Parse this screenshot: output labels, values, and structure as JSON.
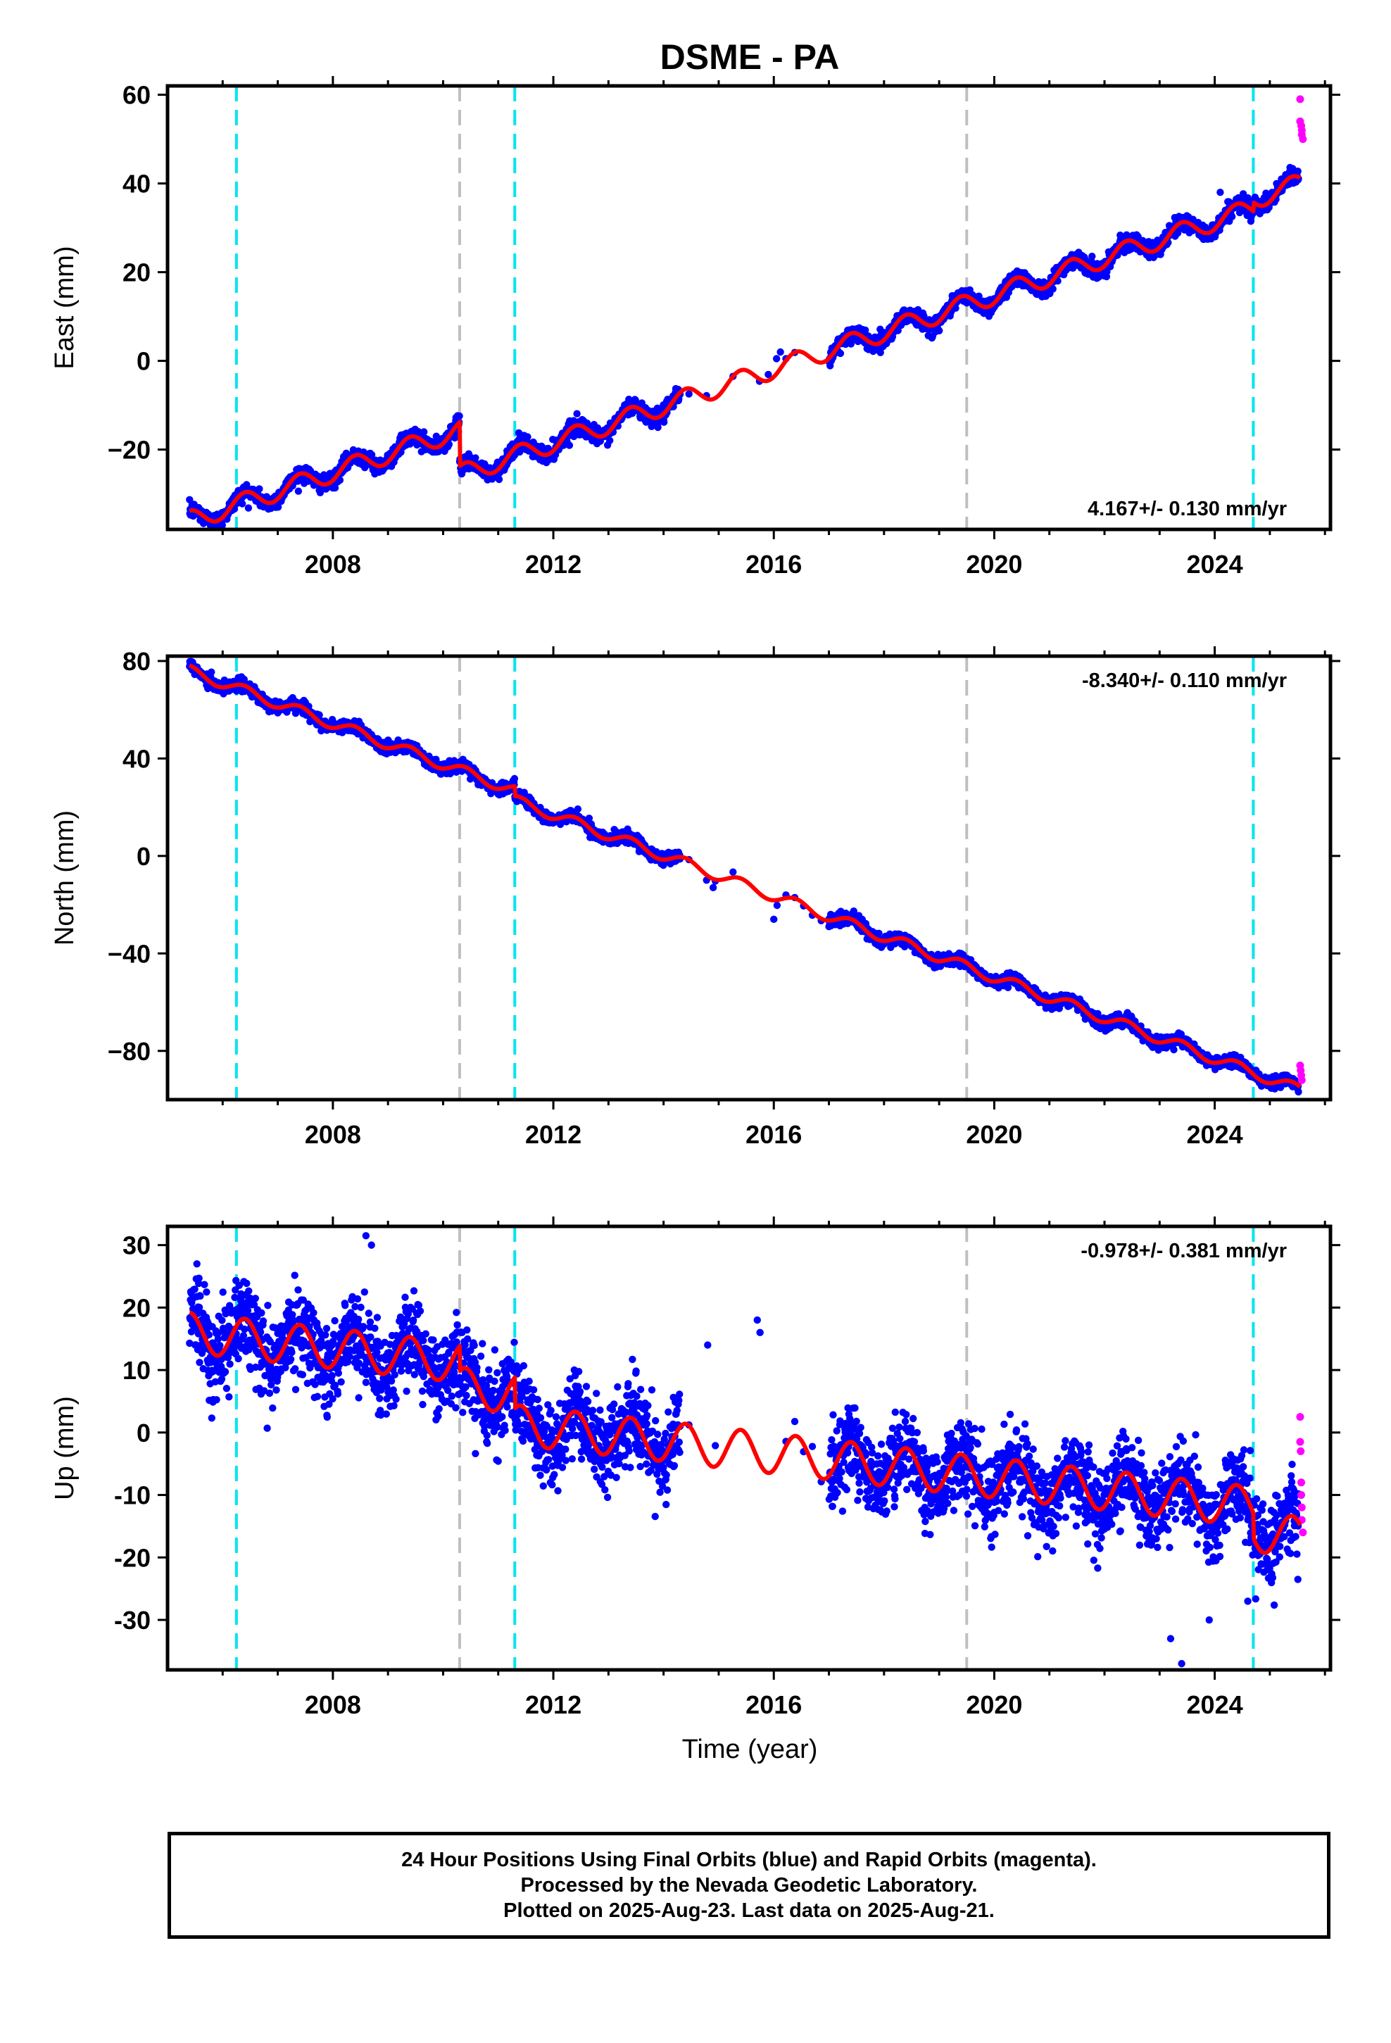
{
  "chart_data": {
    "title": "DSME - PA",
    "xlabel": "Time (year)",
    "x_tick_labels": [
      "2008",
      "2012",
      "2016",
      "2020",
      "2024"
    ],
    "xlim": [
      2005.0,
      2026.1
    ],
    "gap": [
      2014.3,
      2017.0
    ],
    "series_colors": {
      "final_orbits": "#0000ff",
      "rapid_orbits": "#ff00ff",
      "model": "#ff0000"
    },
    "vertical_lines": [
      {
        "x": 2006.25,
        "color": "#00e5ee"
      },
      {
        "x": 2010.3,
        "color": "#bfbfbf"
      },
      {
        "x": 2011.3,
        "color": "#00e5ee"
      },
      {
        "x": 2019.5,
        "color": "#bfbfbf"
      },
      {
        "x": 2024.7,
        "color": "#00e5ee"
      }
    ],
    "panels": [
      {
        "type": "scatter",
        "ylabel": "East (mm)",
        "ylim": [
          -38,
          62
        ],
        "y_ticks": [
          {
            "value": -20,
            "label": "−20"
          },
          {
            "value": 0,
            "label": "0"
          },
          {
            "value": 20,
            "label": "20"
          },
          {
            "value": 40,
            "label": "40"
          },
          {
            "value": 60,
            "label": "60"
          }
        ],
        "rate_label": "4.167+/- 0.130 mm/yr",
        "rate_position": "bottom-right",
        "model": {
          "slope": 4.167,
          "x0": 2005.4,
          "y0": -36,
          "amp": 2.2,
          "noise": 0.9,
          "steps": [
            {
              "x": 2010.3,
              "dy": -10
            },
            {
              "x": 2024.7,
              "dy": 2
            }
          ]
        },
        "outliers": [
          [
            2016.05,
            0.5
          ],
          [
            2016.12,
            2.0
          ],
          [
            2022.9,
            26
          ],
          [
            2024.1,
            38
          ]
        ],
        "rapid_points": [
          [
            2025.55,
            59
          ],
          [
            2025.55,
            54
          ],
          [
            2025.57,
            53
          ],
          [
            2025.58,
            52
          ],
          [
            2025.58,
            51
          ],
          [
            2025.6,
            50
          ]
        ]
      },
      {
        "type": "scatter",
        "ylabel": "North (mm)",
        "ylim": [
          -100,
          82
        ],
        "y_ticks": [
          {
            "value": -80,
            "label": "−80"
          },
          {
            "value": -40,
            "label": "−40"
          },
          {
            "value": 0,
            "label": "0"
          },
          {
            "value": 40,
            "label": "40"
          },
          {
            "value": 80,
            "label": "80"
          }
        ],
        "rate_label": "-8.340+/- 0.110 mm/yr",
        "rate_position": "top-right",
        "model": {
          "slope": -8.34,
          "x0": 2005.4,
          "y0": 76,
          "amp": 2.2,
          "noise": 1.2,
          "steps": [
            {
              "x": 2011.3,
              "dy": -4
            }
          ]
        },
        "outliers": [
          [
            2014.9,
            -13
          ],
          [
            2016.0,
            -26
          ],
          [
            2017.0,
            -29
          ]
        ],
        "rapid_points": [
          [
            2025.55,
            -86
          ],
          [
            2025.56,
            -88
          ],
          [
            2025.57,
            -90
          ],
          [
            2025.58,
            -92
          ]
        ]
      },
      {
        "type": "scatter",
        "ylabel": "Up (mm)",
        "ylim": [
          -38,
          33
        ],
        "y_ticks": [
          {
            "value": -30,
            "label": "-30"
          },
          {
            "value": -20,
            "label": "-20"
          },
          {
            "value": -10,
            "label": "-10"
          },
          {
            "value": 0,
            "label": "0"
          },
          {
            "value": 10,
            "label": "10"
          },
          {
            "value": 20,
            "label": "20"
          },
          {
            "value": 30,
            "label": "30"
          }
        ],
        "rate_label": "-0.978+/- 0.381 mm/yr",
        "rate_position": "top-right",
        "model": {
          "slope": -0.978,
          "x0": 2005.4,
          "y0": 16,
          "amp": 3.2,
          "noise": 3.2,
          "steps": [
            {
              "x": 2010.3,
              "dy": -4
            },
            {
              "x": 2011.3,
              "dy": -5
            },
            {
              "x": 2024.7,
              "dy": -4
            }
          ]
        },
        "outliers": [
          [
            2008.6,
            31.5
          ],
          [
            2008.7,
            30
          ],
          [
            2023.2,
            -33
          ],
          [
            2023.4,
            -37
          ],
          [
            2023.9,
            -30
          ],
          [
            2024.6,
            -27
          ],
          [
            2015.7,
            18
          ],
          [
            2015.75,
            16
          ],
          [
            2014.8,
            14
          ]
        ],
        "rapid_points": [
          [
            2025.55,
            2.5
          ],
          [
            2025.55,
            -1.5
          ],
          [
            2025.56,
            -3
          ],
          [
            2025.57,
            -8
          ],
          [
            2025.57,
            -10
          ],
          [
            2025.58,
            -12
          ],
          [
            2025.58,
            -14
          ],
          [
            2025.6,
            -16
          ]
        ]
      }
    ]
  },
  "footer": {
    "line1": "24 Hour Positions Using Final Orbits (blue) and Rapid Orbits (magenta).",
    "line2": "Processed by the Nevada Geodetic Laboratory.",
    "line3": "Plotted on 2025-Aug-23. Last data on 2025-Aug-21."
  }
}
